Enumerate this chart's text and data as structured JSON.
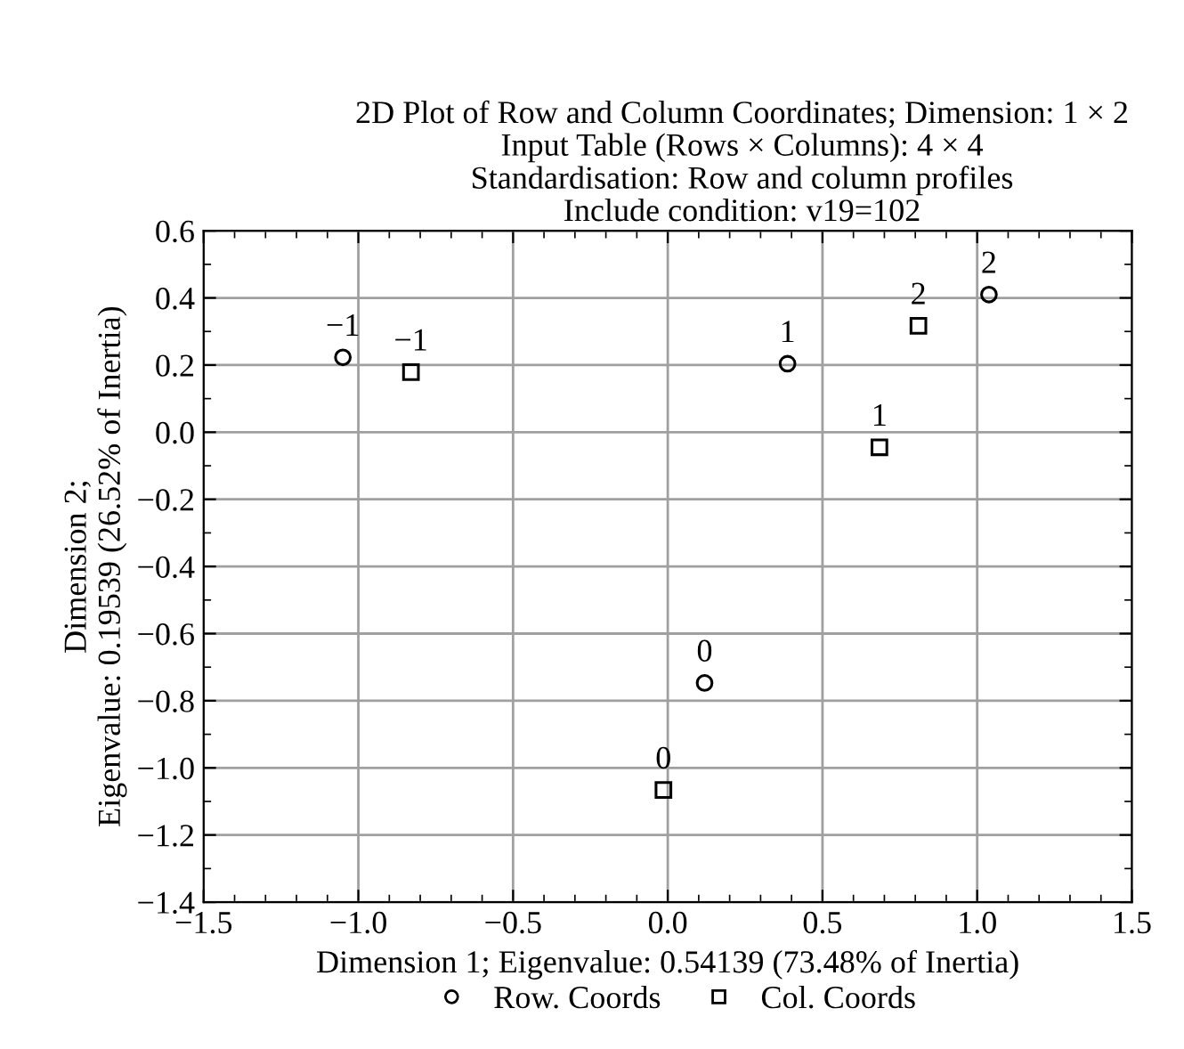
{
  "chart_data": {
    "type": "scatter",
    "title": "2D Plot of Row and Column Coordinates; Dimension: 1 × 2",
    "subtitle": "Input Table (Rows × Columns): 4 × 4\nStandardisation: Row and column profiles\nInclude condition: v19=102",
    "xlabel": "Dimension 1; Eigenvalue: 0.54139 (73.48% of Inertia)",
    "ylabel": "Dimension 2;\nEigenvalue: 0.19539 (26.52% of Inertia)",
    "series": [
      {
        "name": "Row. Coords",
        "color": "#000000",
        "marker": "circle",
        "x": [
          -1.05,
          0.387,
          1.038,
          0.119
        ],
        "values": [
          0.223,
          0.204,
          0.41,
          -0.747
        ]
      },
      {
        "name": "Col. Coords",
        "color": "#000000",
        "marker": "square",
        "x": [
          -0.83,
          0.684,
          0.81,
          -0.014
        ],
        "values": [
          0.179,
          -0.045,
          0.317,
          -1.066
        ]
      }
    ],
    "annotations": [
      {
        "text": "−1",
        "x": -1.05,
        "y": 0.223
      },
      {
        "text": "1",
        "x": 0.387,
        "y": 0.204
      },
      {
        "text": "2",
        "x": 1.038,
        "y": 0.41
      },
      {
        "text": "0",
        "x": 0.119,
        "y": -0.747
      },
      {
        "text": "−1",
        "x": -0.83,
        "y": 0.179
      },
      {
        "text": "1",
        "x": 0.684,
        "y": -0.045
      },
      {
        "text": "2",
        "x": 0.81,
        "y": 0.317
      },
      {
        "text": "0",
        "x": -0.014,
        "y": -1.066
      }
    ],
    "xlim": [
      -1.5,
      1.5
    ],
    "ylim": [
      -1.4,
      0.6
    ],
    "xticks": [
      {
        "value": -1.5,
        "label": "−1.5"
      },
      {
        "value": -1.0,
        "label": "−1.0"
      },
      {
        "value": -0.5,
        "label": "−0.5"
      },
      {
        "value": 0.0,
        "label": "0.0"
      },
      {
        "value": 0.5,
        "label": "0.5"
      },
      {
        "value": 1.0,
        "label": "1.0"
      },
      {
        "value": 1.5,
        "label": "1.5"
      }
    ],
    "yticks": [
      {
        "value": -1.4,
        "label": "−1.4"
      },
      {
        "value": -1.2,
        "label": "−1.2"
      },
      {
        "value": -1.0,
        "label": "−1.0"
      },
      {
        "value": -0.8,
        "label": "−0.8"
      },
      {
        "value": -0.6,
        "label": "−0.6"
      },
      {
        "value": -0.4,
        "label": "−0.4"
      },
      {
        "value": -0.2,
        "label": "−0.2"
      },
      {
        "value": 0.0,
        "label": "0.0"
      },
      {
        "value": 0.2,
        "label": "0.2"
      },
      {
        "value": 0.4,
        "label": "0.4"
      },
      {
        "value": 0.6,
        "label": "0.6"
      }
    ],
    "grid": true,
    "legend": "bottom"
  }
}
